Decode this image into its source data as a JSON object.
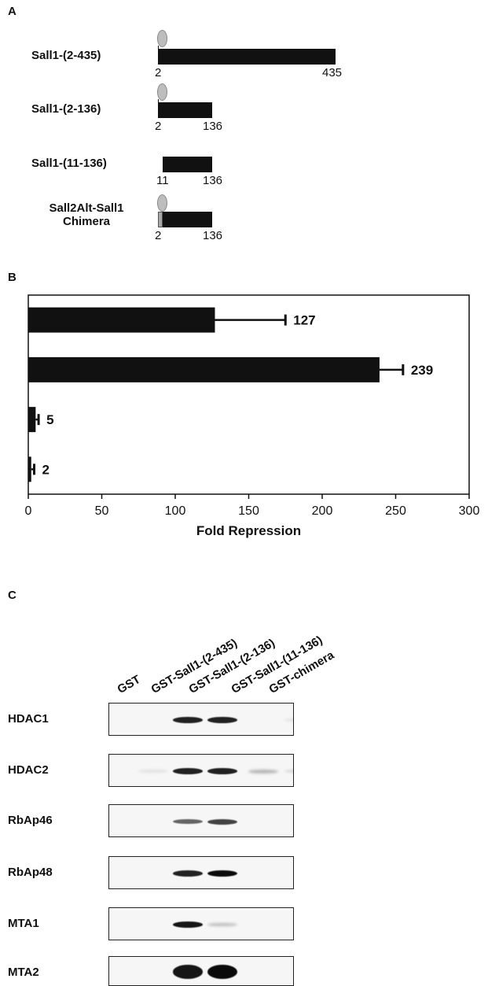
{
  "panel_a": {
    "letter": "A",
    "constructs": [
      {
        "label_lines": [
          "Sall1-(2-435)"
        ],
        "start_label": "2",
        "end_label": "435"
      },
      {
        "label_lines": [
          "Sall1-(2-136)"
        ],
        "start_label": "2",
        "end_label": "136"
      },
      {
        "label_lines": [
          "Sall1-(11-136)"
        ],
        "start_label": "11",
        "end_label": "136"
      },
      {
        "label_lines": [
          "Sall2Alt-Sall1",
          "Chimera"
        ],
        "start_label": "2",
        "end_label": "136"
      }
    ]
  },
  "panel_b": {
    "letter": "B",
    "chart_data": {
      "type": "bar",
      "orientation": "horizontal",
      "values": [
        127,
        239,
        5,
        2
      ],
      "errors": [
        48,
        16,
        2,
        2
      ],
      "value_labels": [
        "127",
        "239",
        "5",
        "2"
      ],
      "xlabel": "Fold Repression",
      "xlim": [
        0,
        300
      ],
      "xticks": [
        "0",
        "50",
        "100",
        "150",
        "200",
        "250",
        "300"
      ],
      "grid": false
    }
  },
  "panel_c": {
    "letter": "C",
    "lanes": [
      "GST",
      "GST-Sall1-(2-435)",
      "GST-Sall1-(2-136)",
      "GST-Sall1-(11-136)",
      "GST-chimera"
    ],
    "blots": [
      {
        "label": "HDAC1",
        "band_intensity": [
          0,
          0.9,
          0.9,
          0,
          0.05
        ]
      },
      {
        "label": "HDAC2",
        "band_intensity": [
          0.05,
          0.9,
          0.9,
          0.25,
          0.1
        ]
      },
      {
        "label": "RbAp46",
        "band_intensity": [
          0,
          0.6,
          0.75,
          0,
          0
        ]
      },
      {
        "label": "RbAp48",
        "band_intensity": [
          0,
          0.9,
          1.0,
          0,
          0
        ]
      },
      {
        "label": "MTA1",
        "band_intensity": [
          0,
          0.95,
          0.2,
          0,
          0
        ]
      },
      {
        "label": "MTA2",
        "band_intensity": [
          0,
          0.95,
          1.0,
          0,
          0
        ]
      }
    ]
  }
}
